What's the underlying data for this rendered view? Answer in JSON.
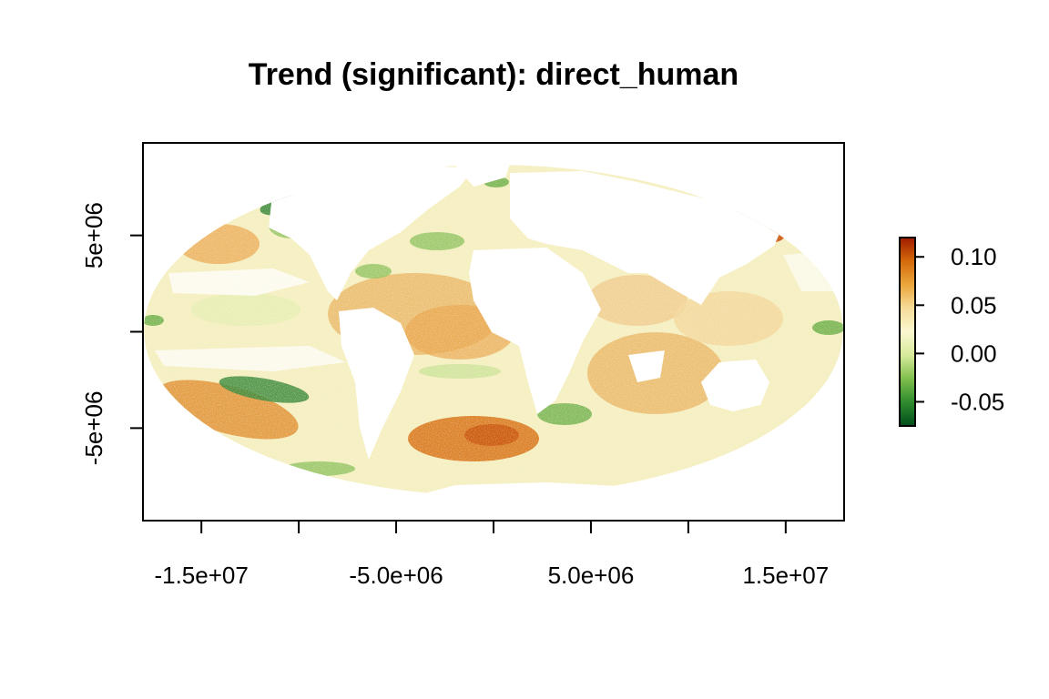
{
  "title": "Trend (significant): direct_human",
  "x_axis": {
    "tick_labels": [
      "-1.5e+07",
      "-5.0e+06",
      "5.0e+06",
      "1.5e+07"
    ],
    "tick_values": [
      -15000000,
      -10000000,
      -5000000,
      0,
      5000000,
      10000000,
      15000000
    ],
    "range": [
      -18000000,
      18000000
    ]
  },
  "y_axis": {
    "tick_labels": [
      "5e+06",
      "-5e+06"
    ],
    "tick_values": [
      5000000,
      0,
      -5000000
    ],
    "range": [
      -9800000,
      9800000
    ]
  },
  "legend": {
    "tick_labels": [
      "0.10",
      "0.05",
      "0.00",
      "-0.05"
    ],
    "tick_values": [
      0.1,
      0.05,
      0.0,
      -0.05
    ],
    "range": [
      -0.075,
      0.12
    ],
    "colors": [
      "#004d1a",
      "#2e8b2e",
      "#7fbf4d",
      "#d6ea9a",
      "#fbf7cf",
      "#f6dc9a",
      "#eba63c",
      "#d46a0a",
      "#a01a00"
    ]
  },
  "colors": {
    "background": "#ffffff",
    "ocean_neutral": "#f5efc0",
    "positive_light": "#f3d79a",
    "positive_mid": "#e9a44a",
    "positive_strong": "#cf5f0a",
    "negative_light": "#cfe39a",
    "negative_mid": "#8cc05a",
    "negative_strong": "#3c8a3a"
  }
}
